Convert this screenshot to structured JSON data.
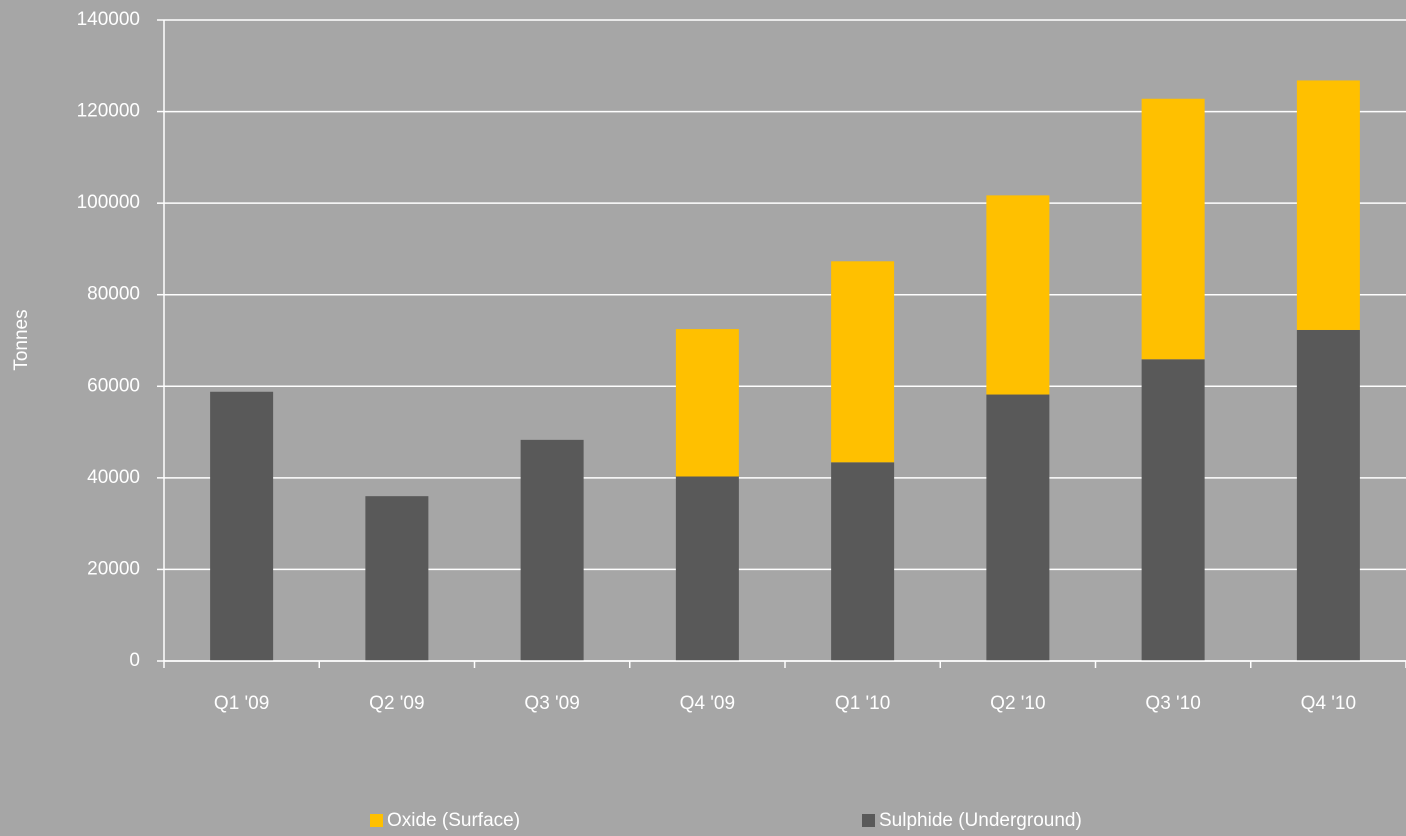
{
  "chart_data": {
    "type": "stacked_bar",
    "y_label": "Tonnes",
    "categories": [
      "Q1 '09",
      "Q2 '09",
      "Q3 '09",
      "Q4 '09",
      "Q1 '10",
      "Q2 '10",
      "Q3 '10",
      "Q4 '10"
    ],
    "series": [
      {
        "name": "Sulphide (Underground)",
        "color": "#595959",
        "values": [
          58800,
          36000,
          48300,
          40300,
          43400,
          58200,
          65900,
          72300
        ]
      },
      {
        "name": "Oxide (Surface)",
        "color": "#ffc000",
        "values": [
          null,
          null,
          null,
          32200,
          43900,
          43500,
          56900,
          54500
        ]
      }
    ],
    "legend_order": [
      1,
      0
    ],
    "ylim": [
      0,
      140000
    ],
    "yticks": [
      0,
      20000,
      40000,
      60000,
      80000,
      100000,
      120000,
      140000
    ],
    "grid": true
  }
}
